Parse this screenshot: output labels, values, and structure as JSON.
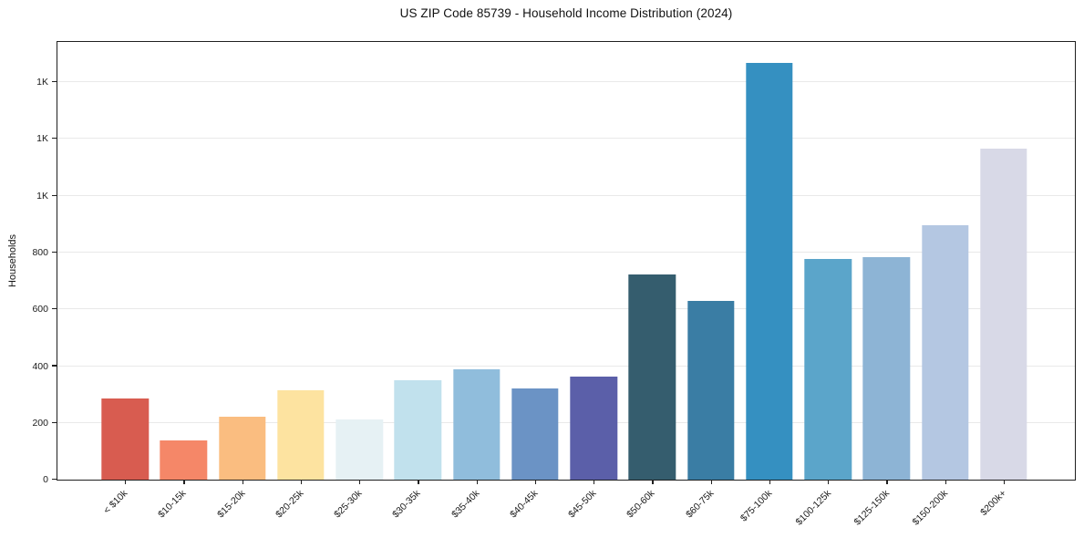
{
  "figure": {
    "background": "#ffffff",
    "plot_border_color": "#1f1f1f",
    "grid_color": "#e9e9e9",
    "tick_color": "#1f1f1f",
    "text_color": "#1a1a1a"
  },
  "chart_data": {
    "type": "bar",
    "title": "US ZIP Code 85739 - Household Income Distribution (2024)",
    "xlabel": "",
    "ylabel": "Households",
    "categories": [
      "< $10k",
      "$10-15k",
      "$15-20k",
      "$20-25k",
      "$25-30k",
      "$30-35k",
      "$35-40k",
      "$40-45k",
      "$45-50k",
      "$50-60k",
      "$60-75k",
      "$75-100k",
      "$100-125k",
      "$125-150k",
      "$150-200k",
      "$200k+"
    ],
    "values": [
      286,
      137,
      221,
      314,
      212,
      349,
      388,
      320,
      362,
      723,
      630,
      1468,
      778,
      785,
      895,
      1165
    ],
    "bar_colors": [
      "#d85c50",
      "#f58768",
      "#fabd80",
      "#fde3a0",
      "#e6f1f4",
      "#c1e1ed",
      "#90bddc",
      "#6b93c5",
      "#5b5fa9",
      "#355d6e",
      "#3a7da4",
      "#3590c1",
      "#5ba5ca",
      "#8db4d5",
      "#b4c7e2",
      "#d8d9e7"
    ],
    "ylim": [
      0,
      1542
    ],
    "yticks": {
      "values": [
        0,
        200,
        400,
        600,
        800,
        1000,
        1200,
        1400
      ],
      "labels": [
        "0",
        "200",
        "400",
        "600",
        "800",
        "1K",
        "1K",
        "1K"
      ]
    },
    "grid": "horizontal",
    "legend": "none"
  }
}
